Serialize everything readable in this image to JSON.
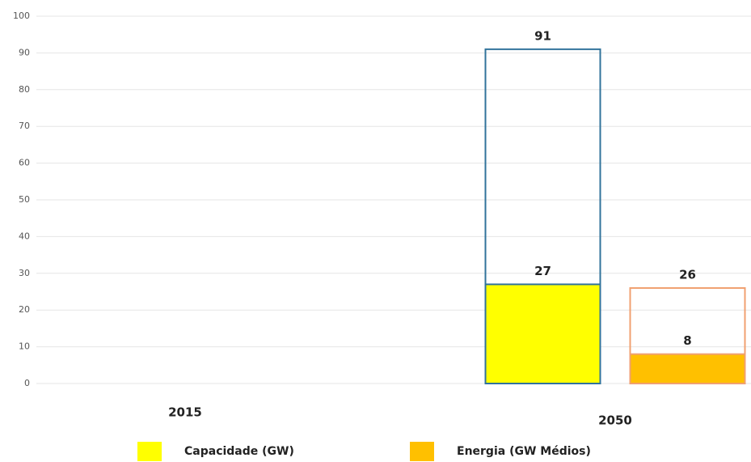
{
  "chart_data": {
    "type": "bar",
    "categories": [
      "2015",
      "2050"
    ],
    "series": [
      {
        "name": "Capacidade (GW)",
        "color": "#ffff00",
        "outline_color": "#31739b",
        "values": [
          0,
          27
        ],
        "outline_values": [
          0,
          91
        ]
      },
      {
        "name": "Energia (GW Médios)",
        "color": "#ffc000",
        "outline_color": "#f0a070",
        "values": [
          0,
          8
        ],
        "outline_values": [
          0,
          26
        ]
      }
    ],
    "ylim": [
      0,
      100
    ],
    "yticks": [
      0,
      10,
      20,
      30,
      40,
      50,
      60,
      70,
      80,
      90,
      100
    ],
    "grid": true,
    "legend": "bottom"
  }
}
